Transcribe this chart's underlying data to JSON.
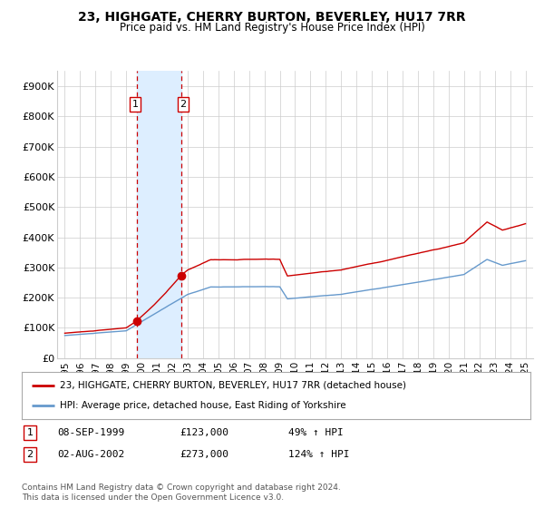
{
  "title": "23, HIGHGATE, CHERRY BURTON, BEVERLEY, HU17 7RR",
  "subtitle": "Price paid vs. HM Land Registry's House Price Index (HPI)",
  "legend_line1": "23, HIGHGATE, CHERRY BURTON, BEVERLEY, HU17 7RR (detached house)",
  "legend_line2": "HPI: Average price, detached house, East Riding of Yorkshire",
  "footer": "Contains HM Land Registry data © Crown copyright and database right 2024.\nThis data is licensed under the Open Government Licence v3.0.",
  "transaction1_date": "08-SEP-1999",
  "transaction1_price": "£123,000",
  "transaction1_hpi": "49% ↑ HPI",
  "transaction2_date": "02-AUG-2002",
  "transaction2_price": "£273,000",
  "transaction2_hpi": "124% ↑ HPI",
  "sale1_x": 1999.69,
  "sale1_y": 123000,
  "sale2_x": 2002.58,
  "sale2_y": 273000,
  "shade_x_start": 1999.69,
  "shade_x_end": 2002.58,
  "vline1_x": 1999.69,
  "vline2_x": 2002.58,
  "red_color": "#cc0000",
  "blue_color": "#6699cc",
  "shade_color": "#ddeeff",
  "background_color": "#ffffff",
  "grid_color": "#cccccc",
  "ylim": [
    0,
    950000
  ],
  "xlim": [
    1994.5,
    2025.5
  ],
  "yticks": [
    0,
    100000,
    200000,
    300000,
    400000,
    500000,
    600000,
    700000,
    800000,
    900000
  ],
  "ytick_labels": [
    "£0",
    "£100K",
    "£200K",
    "£300K",
    "£400K",
    "£500K",
    "£600K",
    "£700K",
    "£800K",
    "£900K"
  ],
  "xticks": [
    1995,
    1996,
    1997,
    1998,
    1999,
    2000,
    2001,
    2002,
    2003,
    2004,
    2005,
    2006,
    2007,
    2008,
    2009,
    2010,
    2011,
    2012,
    2013,
    2014,
    2015,
    2016,
    2017,
    2018,
    2019,
    2020,
    2021,
    2022,
    2023,
    2024,
    2025
  ]
}
